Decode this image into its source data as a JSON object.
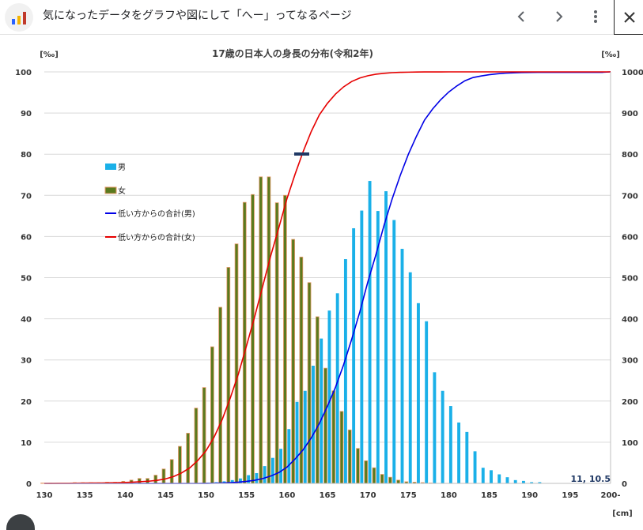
{
  "header": {
    "title": "気になったデータをグラフや図にして「へー」ってなるページ",
    "back_icon": "chevron-left-icon",
    "forward_icon": "chevron-right-icon",
    "menu_icon": "more-vertical-icon",
    "close_icon": "close-icon"
  },
  "chart_data": {
    "type": "bar",
    "title": "17歳の日本人の身長の分布(令和2年)",
    "left_unit": "[‰]",
    "right_unit": "[‰]",
    "x_unit": "[cm]",
    "x_ticks": [
      "130",
      "135",
      "140",
      "145",
      "150",
      "155",
      "160",
      "165",
      "170",
      "175",
      "180",
      "185",
      "190",
      "195",
      "200-"
    ],
    "y_left_ticks": [
      0,
      10,
      20,
      30,
      40,
      50,
      60,
      70,
      80,
      90,
      100
    ],
    "y_right_ticks": [
      0,
      100,
      200,
      300,
      400,
      500,
      600,
      700,
      800,
      900,
      1000
    ],
    "ylim_left": [
      0,
      100
    ],
    "ylim_right": [
      0,
      1000
    ],
    "x": [
      130,
      131,
      132,
      133,
      134,
      135,
      136,
      137,
      138,
      139,
      140,
      141,
      142,
      143,
      144,
      145,
      146,
      147,
      148,
      149,
      150,
      151,
      152,
      153,
      154,
      155,
      156,
      157,
      158,
      159,
      160,
      161,
      162,
      163,
      164,
      165,
      166,
      167,
      168,
      169,
      170,
      171,
      172,
      173,
      174,
      175,
      176,
      177,
      178,
      179,
      180,
      181,
      182,
      183,
      184,
      185,
      186,
      187,
      188,
      189,
      190,
      191,
      192,
      193,
      194,
      195,
      196,
      197,
      198,
      199,
      200
    ],
    "series": [
      {
        "name": "男",
        "kind": "bar",
        "color": "#1ab0e8",
        "values": [
          0,
          0,
          0,
          0,
          0,
          0,
          0,
          0,
          0,
          0,
          0,
          0,
          0,
          0,
          0,
          0,
          0,
          0,
          0,
          0,
          0.2,
          0.3,
          0.5,
          0.8,
          1.2,
          2,
          2.5,
          4.2,
          6.2,
          8.4,
          13.2,
          19.8,
          22.5,
          28.6,
          35.2,
          42,
          46.2,
          54.5,
          62,
          66.3,
          73.5,
          66.2,
          71,
          64,
          57,
          51.3,
          43.8,
          39.4,
          27,
          22.5,
          18.8,
          14.8,
          12.5,
          7.8,
          3.8,
          3.2,
          2.2,
          1.5,
          0.8,
          0.6,
          0.3,
          0.3,
          0.1,
          0,
          0,
          0,
          0,
          0,
          0,
          0,
          0
        ]
      },
      {
        "name": "女",
        "kind": "bar",
        "color": "#5a7a1e",
        "values": [
          0.1,
          0.1,
          0.1,
          0.1,
          0.2,
          0.2,
          0.2,
          0.2,
          0.3,
          0.3,
          0.5,
          0.8,
          1.2,
          1.2,
          2,
          3.5,
          5.8,
          9,
          12.2,
          18.3,
          23.3,
          33.2,
          42.8,
          52.5,
          58.2,
          68.3,
          70.2,
          74.5,
          74.5,
          68.2,
          70,
          59.3,
          55,
          48.8,
          40.5,
          28,
          22.5,
          17.5,
          13,
          8.5,
          5.5,
          3.8,
          2.2,
          1.5,
          0.8,
          0.4,
          0.3,
          0.2,
          0.1,
          0,
          0,
          0,
          0,
          0,
          0,
          0,
          0,
          0,
          0,
          0,
          0,
          0,
          0,
          0,
          0,
          0,
          0,
          0,
          0,
          0,
          0
        ]
      },
      {
        "name": "低い方からの合計(男)",
        "kind": "line",
        "axis": "right",
        "color": "#0000e6",
        "values": [
          0,
          0,
          0,
          0,
          0,
          0,
          0,
          0,
          0,
          0,
          0,
          0,
          0,
          0,
          0,
          0,
          0,
          0,
          0,
          0,
          0.2,
          0.5,
          1,
          1.8,
          3,
          5,
          7.5,
          11.7,
          17.9,
          26.3,
          39.5,
          59.3,
          81.8,
          110.4,
          145.6,
          187.6,
          233.8,
          288.3,
          350.3,
          416.6,
          490.1,
          556.3,
          627.3,
          691.3,
          748.3,
          799.6,
          843.4,
          882.8,
          909.8,
          932.3,
          951.1,
          965.9,
          978.4,
          986.2,
          990,
          993.2,
          995.4,
          996.9,
          997.7,
          998.3,
          998.6,
          998.9,
          999,
          999,
          999,
          999,
          999,
          999,
          999,
          999,
          1000
        ]
      },
      {
        "name": "低い方からの合計(女)",
        "kind": "line",
        "axis": "right",
        "color": "#e60000",
        "values": [
          0.1,
          0.2,
          0.3,
          0.4,
          0.6,
          0.8,
          1,
          1.2,
          1.5,
          1.8,
          2.3,
          3.1,
          4.3,
          5.5,
          7.5,
          11,
          16.8,
          25.8,
          38,
          56.3,
          79.6,
          112.8,
          155.6,
          208.1,
          266.3,
          334.6,
          404.8,
          479.3,
          553.8,
          622,
          692,
          751.3,
          806.3,
          855.1,
          895.6,
          923.6,
          946.1,
          963.6,
          976.6,
          985.1,
          990.6,
          994.4,
          996.6,
          998.1,
          998.9,
          999.3,
          999.6,
          999.8,
          999.9,
          999.9,
          1000,
          1000,
          1000,
          1000,
          1000,
          1000,
          1000,
          1000,
          1000,
          1000,
          1000,
          1000,
          1000,
          1000,
          1000,
          1000,
          1000,
          1000,
          1000,
          1000,
          1000
        ]
      }
    ],
    "legend_placement": "left",
    "grid": true,
    "corner_label": "11, 10.5"
  }
}
